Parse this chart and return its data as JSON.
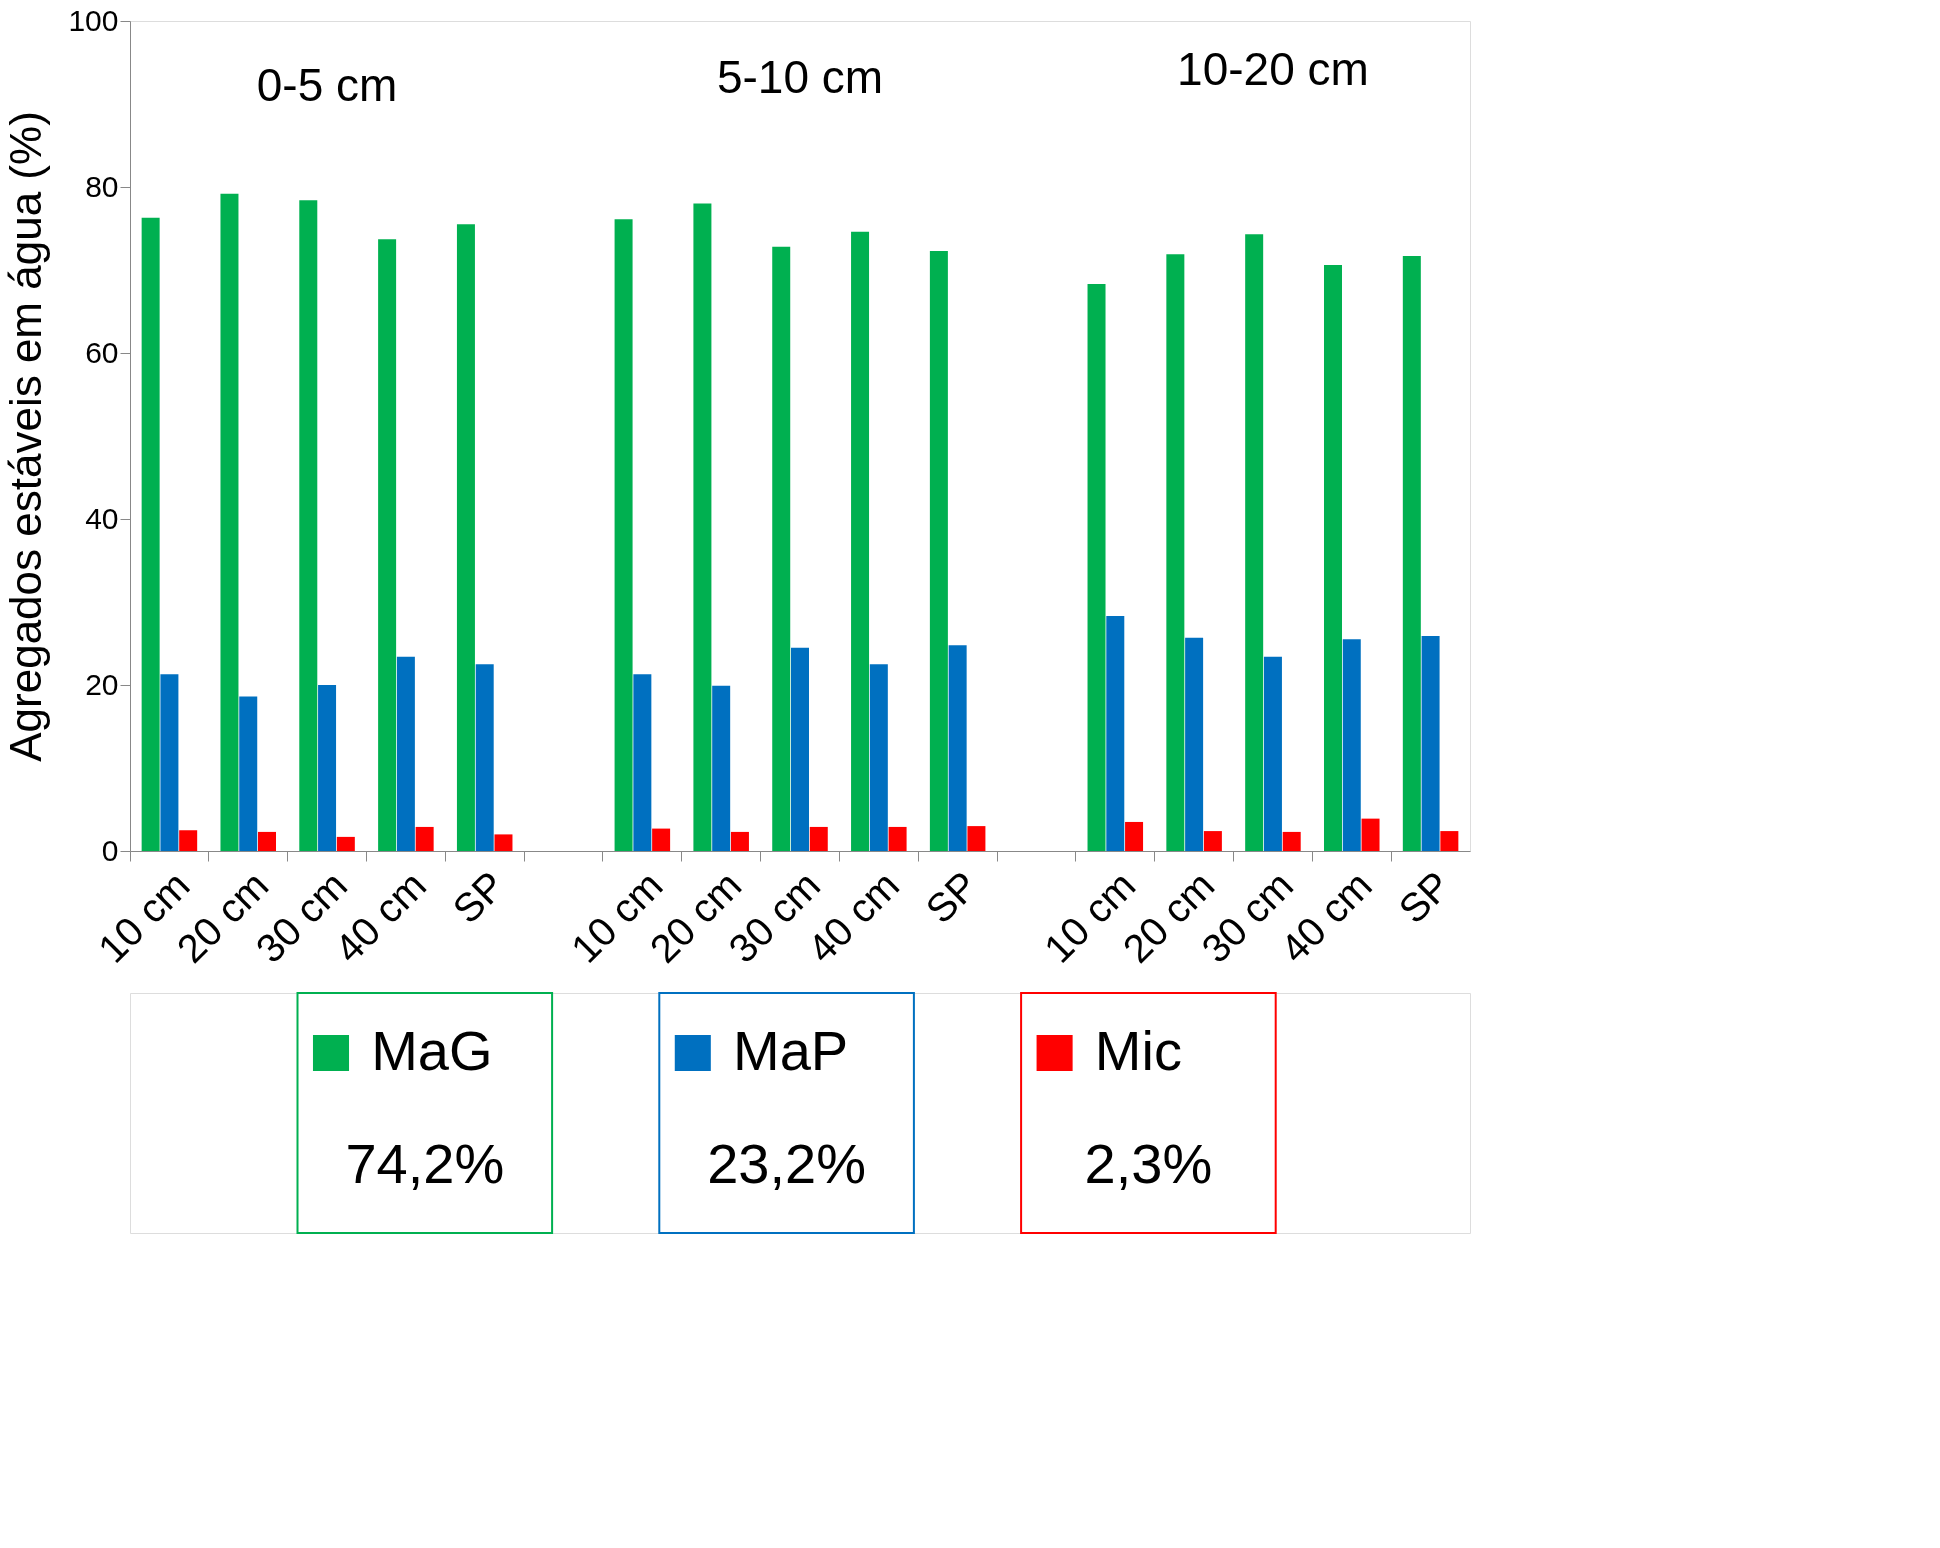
{
  "chart_data": {
    "type": "bar",
    "ylabel": "Agregados estáveis em água (%)",
    "categories": [
      "10 cm",
      "20 cm",
      "30 cm",
      "40 cm",
      "SP",
      null,
      "10 cm",
      "20 cm",
      "30 cm",
      "40 cm",
      "SP",
      null,
      "10 cm",
      "20 cm",
      "30 cm",
      "40 cm",
      "SP"
    ],
    "series": [
      {
        "name": "MaG",
        "color": "#00b050",
        "values": [
          76.3,
          79.2,
          78.4,
          73.7,
          75.5,
          null,
          76.1,
          78.0,
          72.8,
          74.6,
          72.3,
          null,
          68.3,
          71.9,
          74.3,
          70.6,
          71.7
        ]
      },
      {
        "name": "MaP",
        "color": "#0070c0",
        "values": [
          21.3,
          18.6,
          20.0,
          23.4,
          22.5,
          null,
          21.3,
          19.9,
          24.5,
          22.5,
          24.8,
          null,
          28.3,
          25.7,
          23.4,
          25.5,
          25.9
        ]
      },
      {
        "name": "Mic",
        "color": "#ff0000",
        "values": [
          2.5,
          2.3,
          1.7,
          2.9,
          2.0,
          null,
          2.7,
          2.3,
          2.9,
          2.9,
          3.0,
          null,
          3.5,
          2.4,
          2.3,
          3.9,
          2.4
        ]
      }
    ],
    "ylim": [
      0,
      100
    ],
    "yticks": [
      0,
      20,
      40,
      60,
      80,
      100
    ],
    "grid": false,
    "legend": "bottom",
    "annotations": [
      "0-5 cm",
      "5-10 cm",
      "10-20 cm",
      "74,2%",
      "23,2%",
      "2,3%"
    ]
  }
}
